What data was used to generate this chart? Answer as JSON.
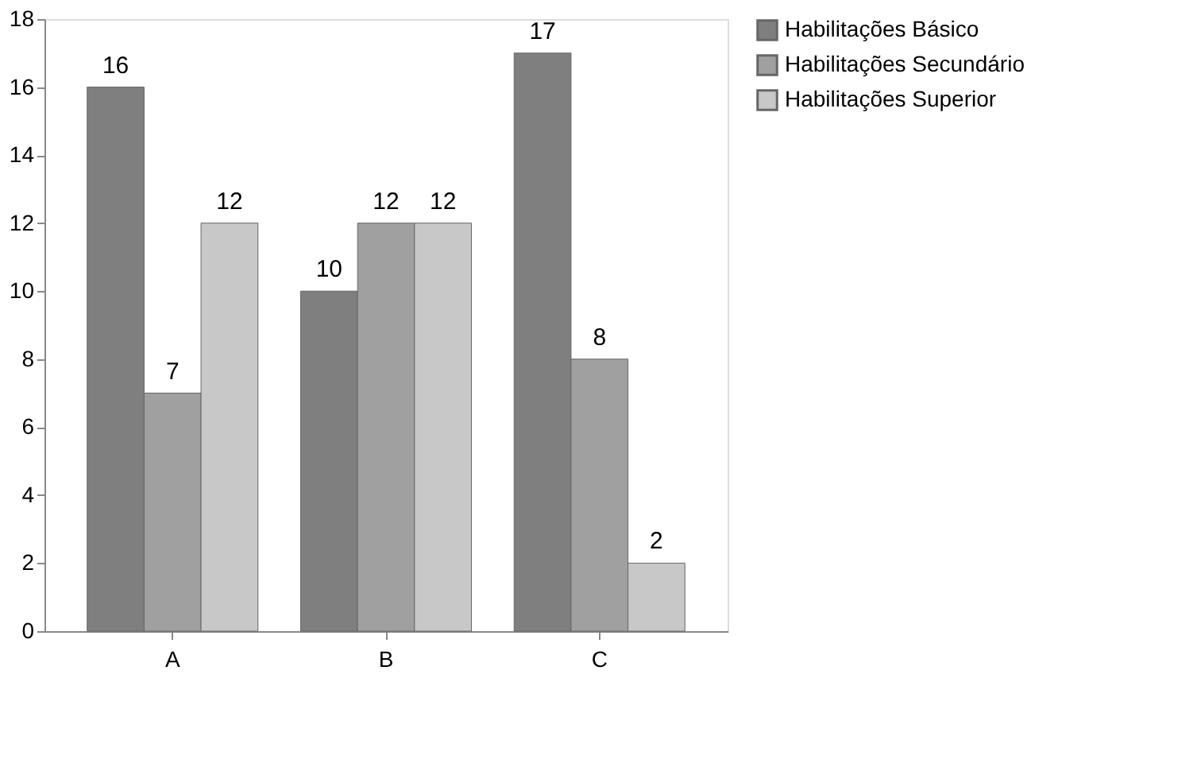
{
  "chart_data": {
    "type": "bar",
    "categories": [
      "A",
      "B",
      "C"
    ],
    "series": [
      {
        "name": "Habilitações Básico",
        "color": "#7f7f7f",
        "values": [
          16,
          10,
          17
        ]
      },
      {
        "name": "Habilitações Secundário",
        "color": "#a0a0a0",
        "values": [
          7,
          12,
          8
        ]
      },
      {
        "name": "Habilitações Superior",
        "color": "#c8c8c8",
        "values": [
          12,
          12,
          2
        ]
      }
    ],
    "ylim": [
      0,
      18
    ],
    "yticks": [
      0,
      2,
      4,
      6,
      8,
      10,
      12,
      14,
      16,
      18
    ],
    "grid": false,
    "legend": "right",
    "data_labels": true
  }
}
